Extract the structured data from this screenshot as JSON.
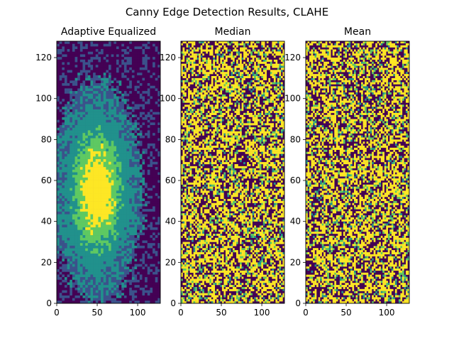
{
  "figure": {
    "suptitle": "Canny Edge Detection Results, CLAHE"
  },
  "chart_data": [
    {
      "type": "heatmap",
      "title": "Adaptive Equalized",
      "xlim": [
        0,
        128
      ],
      "ylim": [
        0,
        128
      ],
      "xticks": [
        0,
        50,
        100
      ],
      "yticks": [
        0,
        20,
        40,
        60,
        80,
        100,
        120
      ],
      "colormap": "viridis",
      "image": "CLAHE-equalized image: bright yellow-green elliptical core centered near (50, 55), surrounded by teal and green rings, dark purple background",
      "pattern": "smooth"
    },
    {
      "type": "heatmap",
      "title": "Median",
      "xlim": [
        0,
        128
      ],
      "ylim": [
        0,
        128
      ],
      "xticks": [
        0,
        50,
        100
      ],
      "yticks": [
        0,
        20,
        40,
        60,
        80,
        100,
        120
      ],
      "colormap": "viridis",
      "image": "dense binary-like noise texture of yellow and dark purple with faint ring structure",
      "pattern": "noise"
    },
    {
      "type": "heatmap",
      "title": "Mean",
      "xlim": [
        0,
        128
      ],
      "ylim": [
        0,
        128
      ],
      "xticks": [
        0,
        50,
        100
      ],
      "yticks": [
        0,
        20,
        40,
        60,
        80,
        100,
        120
      ],
      "colormap": "viridis",
      "image": "dense binary-like noise texture of yellow and dark purple with faint ring structure",
      "pattern": "noise"
    }
  ],
  "colors": {
    "viridis_dark": "#440154",
    "viridis_blue": "#3b528b",
    "viridis_teal": "#21918c",
    "viridis_green": "#5ec962",
    "viridis_yellow": "#fde725"
  }
}
